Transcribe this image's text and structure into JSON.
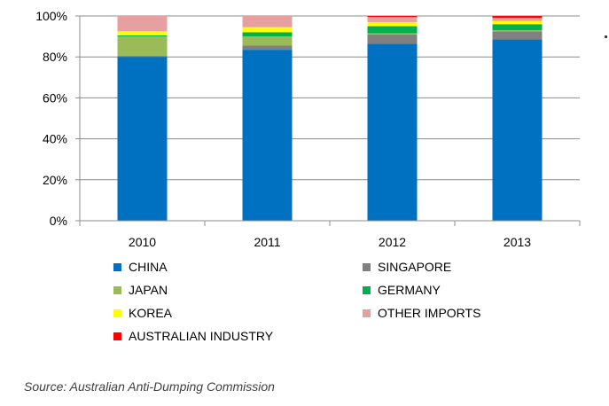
{
  "chart_data": {
    "type": "bar",
    "stacked": true,
    "categories": [
      "2010",
      "2011",
      "2012",
      "2013"
    ],
    "series": [
      {
        "name": "CHINA",
        "color": "#0070c0",
        "values": [
          80,
          83.5,
          86.5,
          88.5
        ]
      },
      {
        "name": "SINGAPORE",
        "color": "#808080",
        "values": [
          0.5,
          2,
          4.5,
          4
        ]
      },
      {
        "name": "JAPAN",
        "color": "#9bbb59",
        "values": [
          9.5,
          4.5,
          0.5,
          0.5
        ]
      },
      {
        "name": "GERMANY",
        "color": "#00b050",
        "values": [
          0.5,
          2,
          3.5,
          3
        ]
      },
      {
        "name": "KOREA",
        "color": "#ffff00",
        "values": [
          2,
          2.5,
          2,
          1.5
        ]
      },
      {
        "name": "OTHER IMPORTS",
        "color": "#e6a0a0",
        "values": [
          7.5,
          5.5,
          2.5,
          1.5
        ]
      },
      {
        "name": "AUSTRALIAN INDUSTRY",
        "color": "#ff0000",
        "values": [
          0,
          0,
          0.5,
          1
        ]
      }
    ],
    "legend_order": [
      "CHINA",
      "SINGAPORE",
      "JAPAN",
      "GERMANY",
      "KOREA",
      "OTHER IMPORTS",
      "AUSTRALIAN INDUSTRY"
    ],
    "yticks": [
      "0%",
      "20%",
      "40%",
      "60%",
      "80%",
      "100%"
    ],
    "ylim": [
      0,
      100
    ],
    "grid": true,
    "legend_position": "bottom",
    "title": "",
    "xlabel": "",
    "ylabel": ""
  },
  "source": "Source: Australian Anti-Dumping Commission"
}
